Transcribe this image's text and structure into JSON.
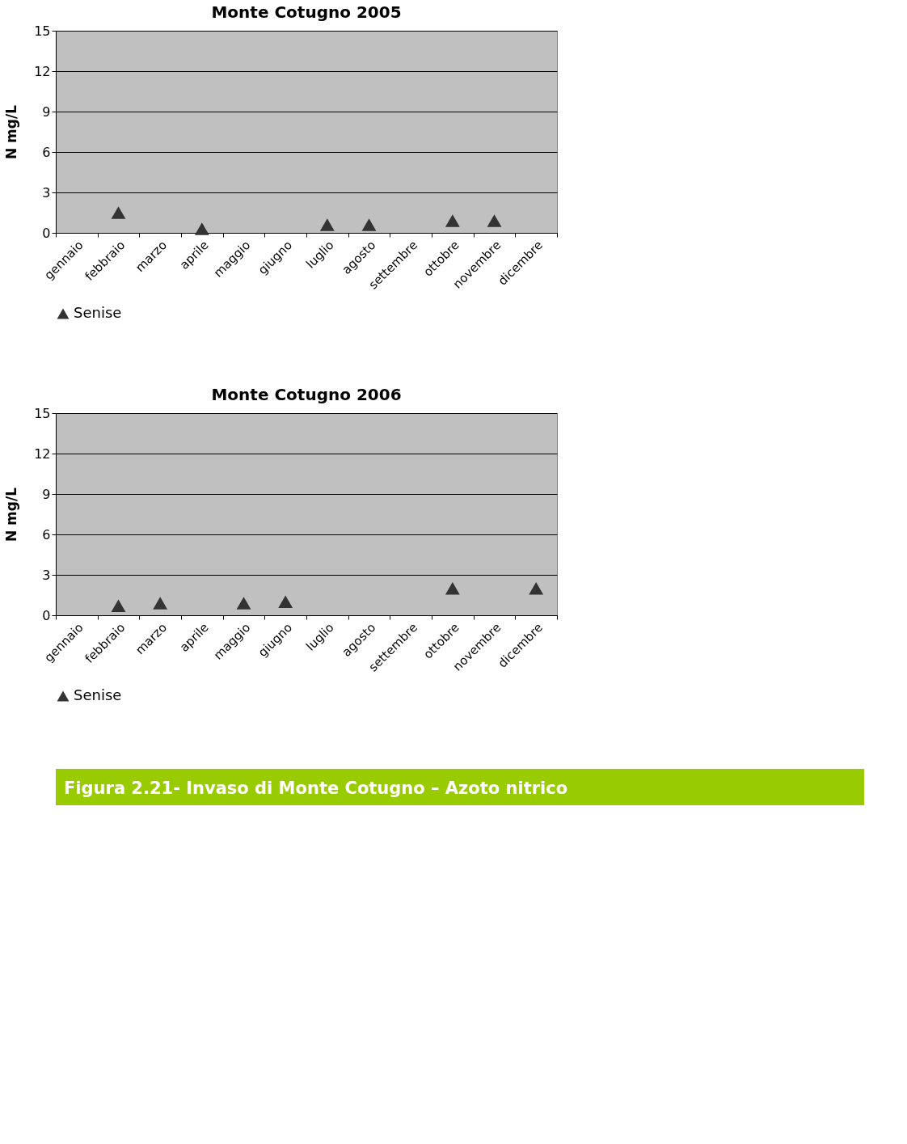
{
  "chart_data": [
    {
      "type": "scatter",
      "title": "Monte Cotugno  2005",
      "ylabel": "N mg/L",
      "categories": [
        "gennaio",
        "febbraio",
        "marzo",
        "aprile",
        "maggio",
        "giugno",
        "luglio",
        "agosto",
        "settembre",
        "ottobre",
        "novembre",
        "dicembre"
      ],
      "series": [
        {
          "name": "Senise",
          "color": "#333333",
          "values": [
            null,
            1.5,
            null,
            0.3,
            null,
            null,
            0.6,
            0.6,
            null,
            0.9,
            0.9,
            null
          ]
        }
      ],
      "ylim": [
        0,
        15
      ],
      "yticks": [
        0,
        3,
        6,
        9,
        12,
        15
      ],
      "grid": "y",
      "legend": "bottom",
      "marker": "triangle"
    },
    {
      "type": "scatter",
      "title": "Monte Cotugno 2006",
      "ylabel": "N mg/L",
      "categories": [
        "gennaio",
        "febbraio",
        "marzo",
        "aprile",
        "maggio",
        "giugno",
        "luglio",
        "agosto",
        "settembre",
        "ottobre",
        "novembre",
        "dicembre"
      ],
      "series": [
        {
          "name": "Senise",
          "color": "#333333",
          "values": [
            null,
            0.7,
            0.9,
            null,
            0.9,
            1.0,
            null,
            null,
            null,
            2.0,
            null,
            2.0
          ]
        }
      ],
      "ylim": [
        0,
        15
      ],
      "yticks": [
        0,
        3,
        6,
        9,
        12,
        15
      ],
      "grid": "y",
      "legend": "bottom",
      "marker": "triangle",
      "annotations": [
        "Figura 2.21- Invaso di Monte Cotugno – Azoto nitrico"
      ]
    }
  ]
}
